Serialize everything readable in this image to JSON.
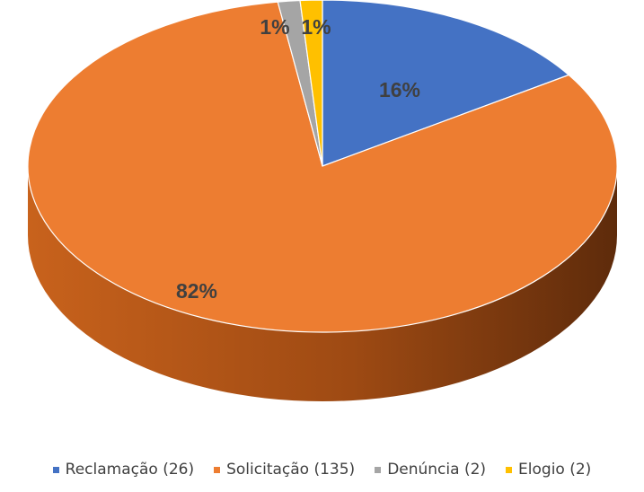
{
  "chart_data": {
    "type": "pie",
    "variant": "3d",
    "categories": [
      "Reclamação",
      "Solicitação",
      "Denúncia",
      "Elogio"
    ],
    "values": [
      26,
      135,
      2,
      2
    ],
    "percent_labels": [
      "16%",
      "82%",
      "1%",
      "1%"
    ],
    "legend_labels": [
      "Reclamação (26)",
      "Solicitação (135)",
      "Denúncia (2)",
      "Elogio (2)"
    ],
    "colors": [
      "#4472C4",
      "#ED7D31",
      "#A5A5A5",
      "#FFC000"
    ],
    "side_colors": [
      "#2F5597",
      "#C55A11",
      "#7F7F7F",
      "#BF9000"
    ],
    "legend_position": "bottom"
  }
}
